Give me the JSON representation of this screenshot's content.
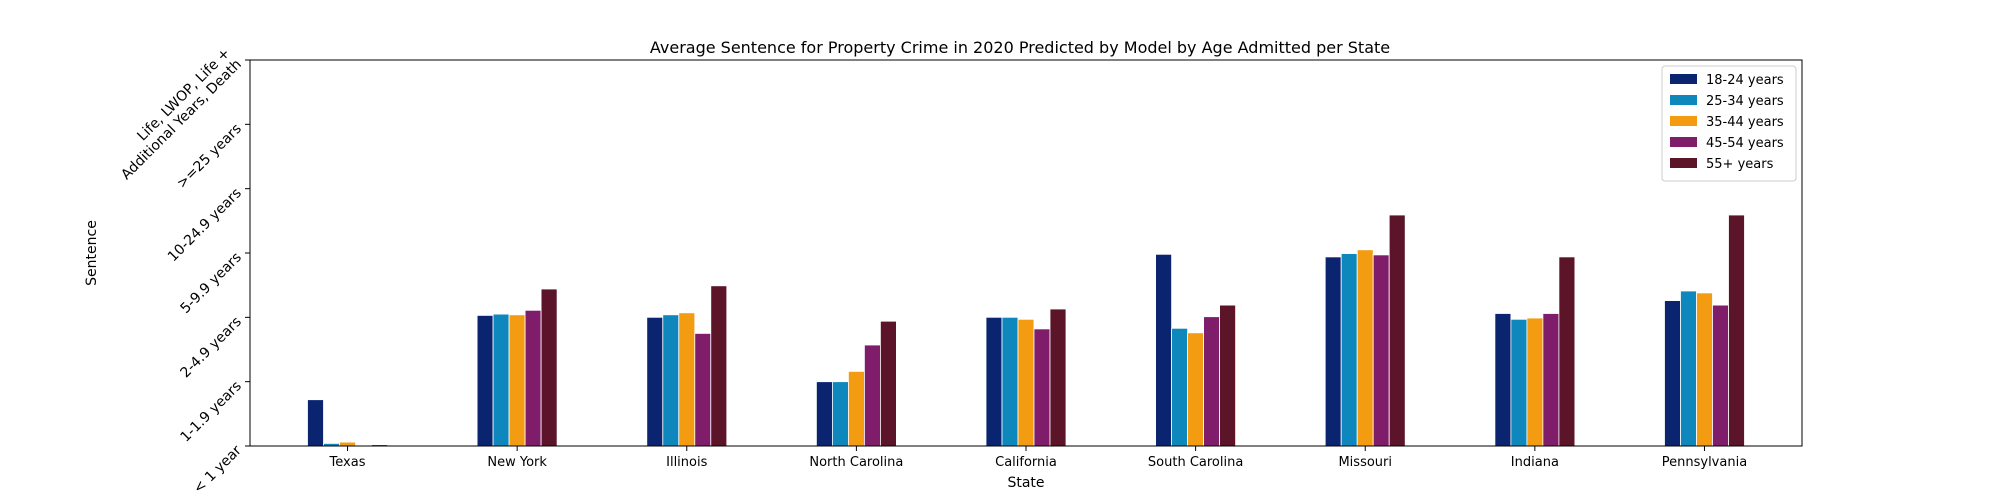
{
  "chart_data": {
    "type": "bar",
    "title": "Average Sentence for Property Crime in 2020 Predicted by Model by Age Admitted per State",
    "xlabel": "State",
    "ylabel": "Sentence",
    "categories": [
      "Texas",
      "New York",
      "Illinois",
      "North Carolina",
      "California",
      "South Carolina",
      "Missouri",
      "Indiana",
      "Pennsylvania"
    ],
    "y_tick_labels": [
      "< 1 year",
      "1-1.9 years",
      "2-4.9 years",
      "5-9.9 years",
      "10-24.9 years",
      ">=25 years",
      "Life, LWOP, Life +\nAdditional Years, Death"
    ],
    "ylim": [
      0,
      6
    ],
    "grid": false,
    "legend_position": "top-right",
    "series": [
      {
        "name": "18-24 years",
        "color": "#0b2470",
        "values": [
          0.72,
          2.03,
          2.0,
          1.0,
          2.0,
          2.98,
          2.94,
          2.06,
          2.26
        ]
      },
      {
        "name": "25-34 years",
        "color": "#0e87bd",
        "values": [
          0.04,
          2.05,
          2.04,
          1.0,
          2.0,
          1.83,
          2.99,
          1.97,
          2.41
        ]
      },
      {
        "name": "35-44 years",
        "color": "#f39c12",
        "values": [
          0.06,
          2.04,
          2.07,
          1.16,
          1.97,
          1.76,
          3.05,
          1.99,
          2.38
        ]
      },
      {
        "name": "45-54 years",
        "color": "#7f1d6b",
        "values": [
          0.0,
          2.11,
          1.75,
          1.57,
          1.82,
          2.01,
          2.97,
          2.06,
          2.19
        ]
      },
      {
        "name": "55+ years",
        "color": "#5c1428",
        "values": [
          0.02,
          2.44,
          2.49,
          1.94,
          2.13,
          2.19,
          3.59,
          2.94,
          3.59
        ]
      }
    ]
  }
}
